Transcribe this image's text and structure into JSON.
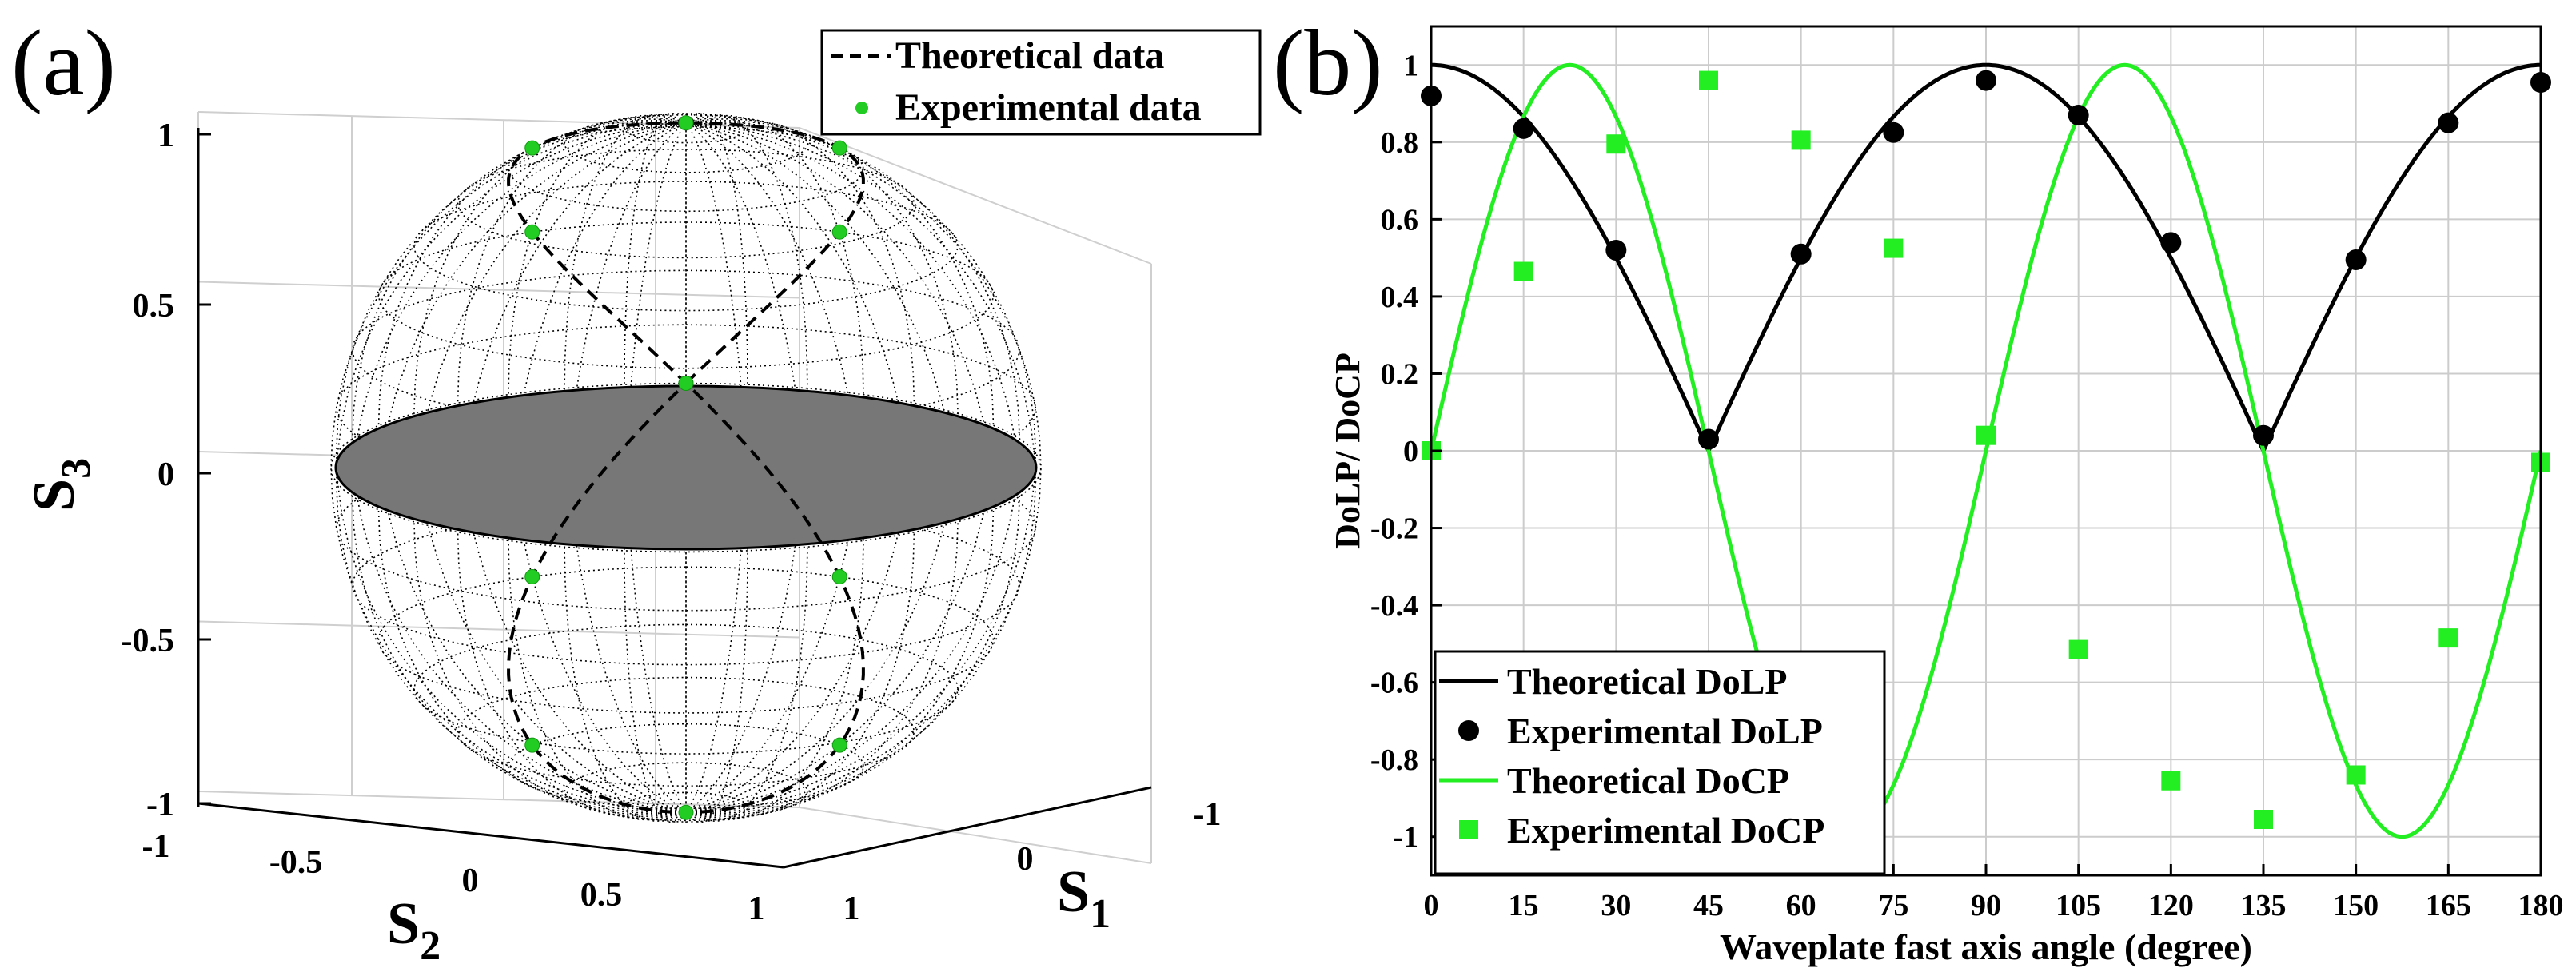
{
  "chart_data": [
    {
      "type": "scatter",
      "panel": "(a)",
      "projection": "3d-poincare-sphere",
      "xlabel": "S",
      "xlabel_sub": "2",
      "ylabel": "S",
      "ylabel_sub": "1",
      "zlabel": "S",
      "zlabel_sub": "3",
      "z_ticks": [
        "1",
        "0.5",
        "0",
        "-0.5",
        "-1"
      ],
      "s2_ticks": [
        "-1",
        "-0.5",
        "0",
        "0.5",
        "1"
      ],
      "s1_ticks": [
        "-1",
        "0",
        "1"
      ],
      "legend": [
        "Theoretical data",
        "Experimental data"
      ],
      "series_colors": {
        "theoretical": "#000000",
        "experimental": "#22cc22",
        "equator": "#777777"
      },
      "experimental_points": [
        {
          "s1": 1.0,
          "s2": 0.0,
          "s3": 0.0
        },
        {
          "s1": 0.75,
          "s2": 0.433,
          "s3": 0.5
        },
        {
          "s1": 0.25,
          "s2": 0.433,
          "s3": 0.866
        },
        {
          "s1": 0.0,
          "s2": 0.0,
          "s3": 1.0
        },
        {
          "s1": 0.25,
          "s2": -0.433,
          "s3": 0.866
        },
        {
          "s1": 0.75,
          "s2": -0.433,
          "s3": 0.5
        },
        {
          "s1": 1.0,
          "s2": 0.0,
          "s3": 0.0
        },
        {
          "s1": 0.75,
          "s2": 0.433,
          "s3": -0.5
        },
        {
          "s1": 0.25,
          "s2": 0.433,
          "s3": -0.866
        },
        {
          "s1": 0.0,
          "s2": 0.0,
          "s3": -1.0
        },
        {
          "s1": 0.25,
          "s2": -0.433,
          "s3": -0.866
        },
        {
          "s1": 0.75,
          "s2": -0.433,
          "s3": -0.5
        }
      ]
    },
    {
      "type": "line",
      "panel": "(b)",
      "xlabel": "Waveplate fast axis angle (degree)",
      "ylabel": "DoLP/ DoCP",
      "xlim": [
        0,
        180
      ],
      "ylim": [
        -1.1,
        1.1
      ],
      "x_ticks": [
        0,
        15,
        30,
        45,
        60,
        75,
        90,
        105,
        120,
        135,
        150,
        165,
        180
      ],
      "y_ticks": [
        1,
        0.8,
        0.6,
        0.4,
        0.2,
        0,
        -0.2,
        -0.4,
        -0.6,
        -0.8,
        -1
      ],
      "y_tick_labels": [
        "1",
        "0.8",
        "0.6",
        "0.4",
        "0.2",
        "0",
        "-0.2",
        "-0.4",
        "-0.6",
        "-0.8",
        "-1"
      ],
      "grid": true,
      "legend_position": "bottom-left",
      "x": [
        0,
        15,
        30,
        45,
        60,
        75,
        90,
        105,
        120,
        135,
        150,
        165,
        180
      ],
      "series": [
        {
          "name": "Theoretical DoLP",
          "kind": "line",
          "color": "#000000",
          "formula": "abs(cos(2x))"
        },
        {
          "name": "Experimental DoLP",
          "kind": "marker-circle",
          "color": "#000000",
          "values": [
            0.92,
            0.835,
            0.52,
            0.03,
            0.51,
            0.825,
            0.96,
            0.87,
            0.54,
            0.04,
            0.495,
            0.85,
            0.955
          ]
        },
        {
          "name": "Theoretical DoCP",
          "kind": "line",
          "color": "#22ee22",
          "formula": "sin(4x)"
        },
        {
          "name": "Experimental DoCP",
          "kind": "marker-square",
          "color": "#22ee22",
          "values": [
            0.0,
            0.465,
            0.795,
            0.96,
            0.805,
            0.525,
            0.04,
            -0.515,
            -0.855,
            -0.955,
            -0.84,
            -0.485,
            -0.03
          ]
        }
      ]
    }
  ]
}
